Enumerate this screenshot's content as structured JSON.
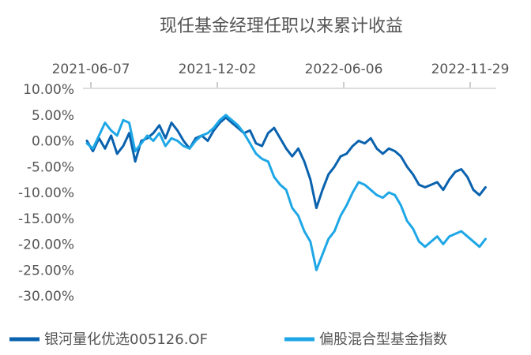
{
  "chart_data": {
    "type": "line",
    "title": "现任基金经理任职以来累计收益",
    "x_tick_labels": [
      "2021-06-07",
      "2021-12-02",
      "2022-06-06",
      "2022-11-29"
    ],
    "y_tick_labels": [
      "10.00%",
      "5.00%",
      "0.00%",
      "-5.00%",
      "-10.00%",
      "-15.00%",
      "-20.00%",
      "-25.00%",
      "-30.00%"
    ],
    "x_range": [
      "2021-05-15",
      "2023-01-15"
    ],
    "ylim": [
      -30,
      10
    ],
    "y_unit": "%",
    "grid": false,
    "legend_position": "bottom",
    "series": [
      {
        "name": "银河量化优选005126.OF",
        "color": "#0a62ae",
        "points": [
          [
            "2021-05-15",
            0.0
          ],
          [
            "2021-05-24",
            -2.0
          ],
          [
            "2021-06-02",
            0.5
          ],
          [
            "2021-06-11",
            -1.5
          ],
          [
            "2021-06-20",
            1.0
          ],
          [
            "2021-06-29",
            -2.5
          ],
          [
            "2021-07-08",
            -1.0
          ],
          [
            "2021-07-17",
            1.5
          ],
          [
            "2021-07-26",
            -4.0
          ],
          [
            "2021-08-04",
            0.0
          ],
          [
            "2021-08-13",
            0.5
          ],
          [
            "2021-08-22",
            1.5
          ],
          [
            "2021-08-31",
            3.0
          ],
          [
            "2021-09-09",
            0.5
          ],
          [
            "2021-09-18",
            3.5
          ],
          [
            "2021-09-27",
            2.0
          ],
          [
            "2021-10-06",
            0.0
          ],
          [
            "2021-10-15",
            -1.5
          ],
          [
            "2021-10-24",
            0.5
          ],
          [
            "2021-11-02",
            1.0
          ],
          [
            "2021-11-11",
            0.0
          ],
          [
            "2021-11-20",
            2.0
          ],
          [
            "2021-11-29",
            3.5
          ],
          [
            "2021-12-08",
            4.5
          ],
          [
            "2021-12-17",
            3.5
          ],
          [
            "2021-12-26",
            2.5
          ],
          [
            "2022-01-04",
            1.5
          ],
          [
            "2022-01-13",
            2.0
          ],
          [
            "2022-01-22",
            -0.5
          ],
          [
            "2022-01-31",
            -1.0
          ],
          [
            "2022-02-09",
            1.5
          ],
          [
            "2022-02-18",
            2.5
          ],
          [
            "2022-02-27",
            0.5
          ],
          [
            "2022-03-08",
            -1.5
          ],
          [
            "2022-03-17",
            -3.0
          ],
          [
            "2022-03-26",
            -1.5
          ],
          [
            "2022-04-04",
            -4.0
          ],
          [
            "2022-04-13",
            -7.5
          ],
          [
            "2022-04-22",
            -13.0
          ],
          [
            "2022-05-01",
            -9.5
          ],
          [
            "2022-05-10",
            -6.5
          ],
          [
            "2022-05-19",
            -5.0
          ],
          [
            "2022-05-28",
            -3.0
          ],
          [
            "2022-06-06",
            -2.5
          ],
          [
            "2022-06-15",
            -1.0
          ],
          [
            "2022-06-24",
            0.0
          ],
          [
            "2022-07-03",
            -0.5
          ],
          [
            "2022-07-12",
            0.5
          ],
          [
            "2022-07-21",
            -1.5
          ],
          [
            "2022-07-30",
            -2.5
          ],
          [
            "2022-08-08",
            -1.5
          ],
          [
            "2022-08-17",
            -2.0
          ],
          [
            "2022-08-26",
            -3.0
          ],
          [
            "2022-09-04",
            -5.0
          ],
          [
            "2022-09-13",
            -6.5
          ],
          [
            "2022-09-22",
            -8.5
          ],
          [
            "2022-10-01",
            -9.0
          ],
          [
            "2022-10-10",
            -8.5
          ],
          [
            "2022-10-19",
            -8.0
          ],
          [
            "2022-10-28",
            -9.5
          ],
          [
            "2022-11-06",
            -7.5
          ],
          [
            "2022-11-15",
            -6.0
          ],
          [
            "2022-11-24",
            -5.5
          ],
          [
            "2022-12-03",
            -7.0
          ],
          [
            "2022-12-12",
            -9.5
          ],
          [
            "2022-12-21",
            -10.5
          ],
          [
            "2022-12-30",
            -9.0
          ]
        ]
      },
      {
        "name": "偏股混合型基金指数",
        "color": "#1ea7e6",
        "points": [
          [
            "2021-05-15",
            -0.5
          ],
          [
            "2021-05-24",
            -1.5
          ],
          [
            "2021-06-02",
            1.0
          ],
          [
            "2021-06-11",
            3.5
          ],
          [
            "2021-06-20",
            2.0
          ],
          [
            "2021-06-29",
            1.0
          ],
          [
            "2021-07-08",
            4.0
          ],
          [
            "2021-07-17",
            3.5
          ],
          [
            "2021-07-26",
            -2.0
          ],
          [
            "2021-08-04",
            -0.5
          ],
          [
            "2021-08-13",
            1.0
          ],
          [
            "2021-08-22",
            0.0
          ],
          [
            "2021-08-31",
            1.5
          ],
          [
            "2021-09-09",
            -1.0
          ],
          [
            "2021-09-18",
            0.5
          ],
          [
            "2021-09-27",
            0.0
          ],
          [
            "2021-10-06",
            -1.0
          ],
          [
            "2021-10-15",
            -1.5
          ],
          [
            "2021-10-24",
            0.0
          ],
          [
            "2021-11-02",
            1.0
          ],
          [
            "2021-11-11",
            1.5
          ],
          [
            "2021-11-20",
            2.5
          ],
          [
            "2021-11-29",
            4.0
          ],
          [
            "2021-12-08",
            5.0
          ],
          [
            "2021-12-17",
            4.0
          ],
          [
            "2021-12-26",
            3.0
          ],
          [
            "2022-01-04",
            1.5
          ],
          [
            "2022-01-13",
            -0.5
          ],
          [
            "2022-01-22",
            -2.5
          ],
          [
            "2022-01-31",
            -3.5
          ],
          [
            "2022-02-09",
            -4.0
          ],
          [
            "2022-02-18",
            -7.0
          ],
          [
            "2022-02-27",
            -8.5
          ],
          [
            "2022-03-08",
            -9.5
          ],
          [
            "2022-03-17",
            -13.0
          ],
          [
            "2022-03-26",
            -14.5
          ],
          [
            "2022-04-04",
            -17.5
          ],
          [
            "2022-04-13",
            -19.5
          ],
          [
            "2022-04-22",
            -25.0
          ],
          [
            "2022-05-01",
            -22.0
          ],
          [
            "2022-05-10",
            -19.0
          ],
          [
            "2022-05-19",
            -17.5
          ],
          [
            "2022-05-28",
            -14.5
          ],
          [
            "2022-06-06",
            -12.5
          ],
          [
            "2022-06-15",
            -10.0
          ],
          [
            "2022-06-24",
            -8.0
          ],
          [
            "2022-07-03",
            -8.5
          ],
          [
            "2022-07-12",
            -9.5
          ],
          [
            "2022-07-21",
            -10.5
          ],
          [
            "2022-07-30",
            -11.0
          ],
          [
            "2022-08-08",
            -10.0
          ],
          [
            "2022-08-17",
            -10.5
          ],
          [
            "2022-08-26",
            -12.5
          ],
          [
            "2022-09-04",
            -15.5
          ],
          [
            "2022-09-13",
            -17.0
          ],
          [
            "2022-09-22",
            -19.5
          ],
          [
            "2022-10-01",
            -20.5
          ],
          [
            "2022-10-10",
            -19.5
          ],
          [
            "2022-10-19",
            -18.5
          ],
          [
            "2022-10-28",
            -20.0
          ],
          [
            "2022-11-06",
            -18.5
          ],
          [
            "2022-11-15",
            -18.0
          ],
          [
            "2022-11-24",
            -17.5
          ],
          [
            "2022-12-03",
            -18.5
          ],
          [
            "2022-12-12",
            -19.5
          ],
          [
            "2022-12-21",
            -20.5
          ],
          [
            "2022-12-30",
            -19.0
          ]
        ]
      }
    ]
  }
}
